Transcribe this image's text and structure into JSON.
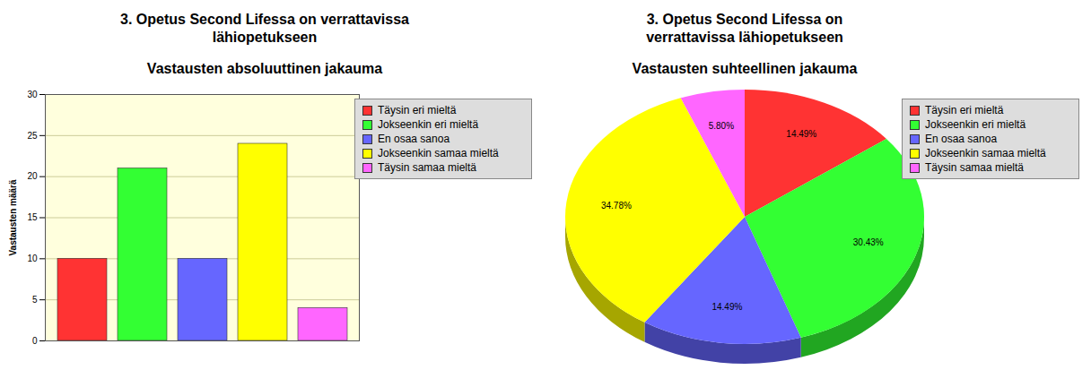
{
  "chart_data": [
    {
      "type": "bar",
      "title": "3. Opetus Second Lifessa on verrattavissa lähiopetukseen",
      "subtitle": "Vastausten absoluuttinen jakauma",
      "ylabel": "Vastausten määrä",
      "categories": [
        "Täysin eri mieltä",
        "Jokseenkin eri mieltä",
        "En osaa sanoa",
        "Jokseenkin samaa mieltä",
        "Täysin samaa mieltä"
      ],
      "values": [
        10,
        21,
        10,
        24,
        4
      ],
      "colors": [
        "#ff3333",
        "#33ff33",
        "#6666ff",
        "#ffff00",
        "#ff66ff"
      ],
      "ylim": [
        0,
        30
      ],
      "yticks": [
        0,
        5,
        10,
        15,
        20,
        25,
        30
      ],
      "grid": true,
      "legend": "right",
      "tick_labels": "y"
    },
    {
      "type": "pie",
      "title": "3. Opetus Second Lifessa on verrattavissa lähiopetukseen",
      "subtitle": "Vastausten suhteellinen jakauma",
      "categories": [
        "Täysin eri mieltä",
        "Jokseenkin eri mieltä",
        "En osaa sanoa",
        "Jokseenkin samaa mieltä",
        "Täysin samaa mieltä"
      ],
      "values": [
        14.49,
        30.43,
        14.49,
        34.78,
        5.8
      ],
      "value_labels": [
        "14.49%",
        "30.43%",
        "14.49%",
        "34.78%",
        "5.80%"
      ],
      "colors": [
        "#ff3333",
        "#33ff33",
        "#6666ff",
        "#ffff00",
        "#ff66ff"
      ],
      "data_labels": true,
      "legend": "right"
    }
  ]
}
